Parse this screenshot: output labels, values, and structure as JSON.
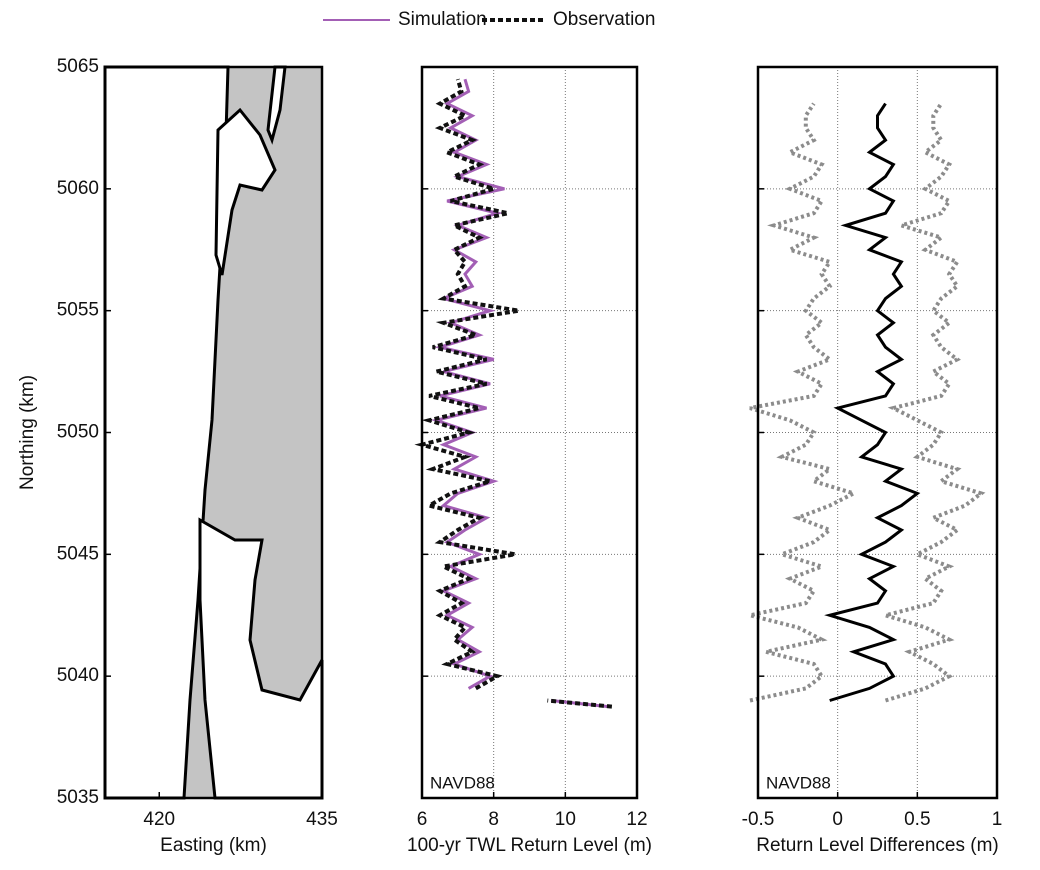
{
  "chart_data": [
    {
      "type": "map",
      "xlabel": "Easting (km)",
      "ylabel": "Northing (km)",
      "xlim": [
        415,
        435
      ],
      "xticks": [
        420,
        435
      ],
      "ylim": [
        5035,
        5065
      ],
      "yticks": [
        5035,
        5040,
        5045,
        5050,
        5055,
        5060,
        5065
      ]
    },
    {
      "type": "line",
      "xlabel": "100-yr TWL Return Level (m)",
      "annotation": "NAVD88",
      "xlim": [
        6,
        12
      ],
      "xticks": [
        6,
        8,
        10,
        12
      ],
      "ylim": [
        5035,
        5065
      ],
      "yticks": [
        5035,
        5040,
        5045,
        5050,
        5055,
        5060,
        5065
      ],
      "grid": true,
      "y": [
        5038.75,
        5039.0,
        5039.25,
        5039.5,
        5040.0,
        5040.5,
        5041.0,
        5041.5,
        5042.0,
        5042.5,
        5043.0,
        5043.5,
        5044.0,
        5044.5,
        5045.0,
        5045.5,
        5046.0,
        5046.5,
        5047.0,
        5047.5,
        5048.0,
        5048.5,
        5049.0,
        5049.5,
        5050.0,
        5050.5,
        5051.0,
        5051.5,
        5052.0,
        5052.5,
        5053.0,
        5053.5,
        5054.0,
        5054.5,
        5055.0,
        5055.5,
        5056.0,
        5056.5,
        5057.0,
        5057.5,
        5058.0,
        5058.5,
        5059.0,
        5059.5,
        5060.0,
        5060.5,
        5061.0,
        5061.5,
        5062.0,
        5062.5,
        5063.0,
        5063.5,
        5064.0,
        5064.5
      ],
      "series": [
        {
          "name": "Simulation",
          "color": "#a35fb5",
          "linestyle": "solid",
          "values": [
            11.2,
            9.6,
            null,
            7.3,
            7.9,
            6.9,
            7.6,
            7.0,
            7.4,
            6.7,
            7.3,
            6.6,
            7.5,
            6.8,
            7.6,
            6.7,
            7.2,
            7.8,
            6.6,
            7.0,
            8.0,
            6.9,
            7.5,
            6.6,
            7.4,
            6.4,
            7.8,
            6.5,
            7.9,
            6.6,
            8.0,
            6.5,
            7.6,
            6.8,
            7.9,
            6.6,
            7.4,
            7.2,
            7.5,
            6.9,
            7.8,
            7.0,
            8.1,
            6.7,
            8.3,
            7.0,
            7.8,
            6.9,
            7.5,
            6.8,
            7.4,
            6.7,
            7.3,
            7.2
          ]
        },
        {
          "name": "Observation",
          "color": "#111111",
          "linestyle": "dashed",
          "values": [
            11.3,
            9.5,
            null,
            7.5,
            8.1,
            6.7,
            7.4,
            6.9,
            7.2,
            6.5,
            7.1,
            6.5,
            7.3,
            6.6,
            8.6,
            6.5,
            7.0,
            7.6,
            6.2,
            6.8,
            7.9,
            6.3,
            7.2,
            6.0,
            7.3,
            6.2,
            7.6,
            6.2,
            7.8,
            6.4,
            7.8,
            6.3,
            7.5,
            6.6,
            8.7,
            6.6,
            7.2,
            7.0,
            7.2,
            6.9,
            7.6,
            6.9,
            8.4,
            6.8,
            8.0,
            6.9,
            7.6,
            6.7,
            7.4,
            6.5,
            7.2,
            6.5,
            7.1,
            7.0
          ]
        }
      ]
    },
    {
      "type": "line",
      "xlabel": "Return Level Differences (m)",
      "annotation": "NAVD88",
      "xlim": [
        -0.5,
        1
      ],
      "xticks": [
        -0.5,
        0,
        0.5,
        1
      ],
      "ylim": [
        5035,
        5065
      ],
      "yticks": [
        5035,
        5040,
        5045,
        5050,
        5055,
        5060,
        5065
      ],
      "grid": true,
      "y": [
        5039.0,
        5039.5,
        5040.0,
        5040.5,
        5041.0,
        5041.5,
        5042.0,
        5042.5,
        5043.0,
        5043.5,
        5044.0,
        5044.5,
        5045.0,
        5045.5,
        5046.0,
        5046.5,
        5047.0,
        5047.5,
        5048.0,
        5048.5,
        5049.0,
        5049.5,
        5050.0,
        5050.5,
        5051.0,
        5051.5,
        5052.0,
        5052.5,
        5053.0,
        5053.5,
        5054.0,
        5054.5,
        5055.0,
        5055.5,
        5056.0,
        5056.5,
        5057.0,
        5057.5,
        5058.0,
        5058.5,
        5059.0,
        5059.5,
        5060.0,
        5060.5,
        5061.0,
        5061.5,
        5062.0,
        5062.5,
        5063.0,
        5063.5
      ],
      "series": [
        {
          "color": "#8c8c8c",
          "linestyle": "dotted",
          "values": [
            -0.55,
            -0.2,
            -0.1,
            -0.15,
            -0.45,
            -0.1,
            -0.25,
            -0.55,
            -0.2,
            -0.15,
            -0.3,
            -0.1,
            -0.35,
            -0.15,
            -0.05,
            -0.25,
            -0.05,
            0.1,
            -0.15,
            -0.05,
            -0.35,
            -0.2,
            -0.15,
            -0.3,
            -0.55,
            -0.15,
            -0.1,
            -0.25,
            -0.05,
            -0.15,
            -0.2,
            -0.1,
            -0.2,
            -0.15,
            -0.05,
            -0.1,
            -0.05,
            -0.3,
            -0.15,
            -0.4,
            -0.15,
            -0.1,
            -0.3,
            -0.15,
            -0.1,
            -0.3,
            -0.15,
            -0.2,
            -0.2,
            -0.15
          ]
        },
        {
          "color": "#8c8c8c",
          "linestyle": "dotted",
          "values": [
            0.3,
            0.55,
            0.7,
            0.6,
            0.45,
            0.7,
            0.55,
            0.3,
            0.6,
            0.65,
            0.55,
            0.7,
            0.5,
            0.65,
            0.75,
            0.6,
            0.8,
            0.9,
            0.65,
            0.75,
            0.5,
            0.6,
            0.65,
            0.5,
            0.35,
            0.65,
            0.7,
            0.6,
            0.75,
            0.65,
            0.6,
            0.7,
            0.6,
            0.65,
            0.75,
            0.7,
            0.75,
            0.55,
            0.65,
            0.4,
            0.65,
            0.7,
            0.55,
            0.65,
            0.7,
            0.55,
            0.65,
            0.6,
            0.6,
            0.65
          ]
        },
        {
          "color": "#000000",
          "linestyle": "solid",
          "values": [
            -0.05,
            0.2,
            0.35,
            0.3,
            0.1,
            0.35,
            0.2,
            -0.05,
            0.25,
            0.3,
            0.2,
            0.35,
            0.15,
            0.3,
            0.4,
            0.25,
            0.4,
            0.5,
            0.3,
            0.4,
            0.15,
            0.25,
            0.3,
            0.15,
            0,
            0.3,
            0.35,
            0.25,
            0.4,
            0.3,
            0.25,
            0.35,
            0.25,
            0.3,
            0.4,
            0.35,
            0.4,
            0.2,
            0.3,
            0.05,
            0.3,
            0.35,
            0.2,
            0.3,
            0.35,
            0.2,
            0.3,
            0.25,
            0.25,
            0.3
          ]
        }
      ]
    }
  ]
}
